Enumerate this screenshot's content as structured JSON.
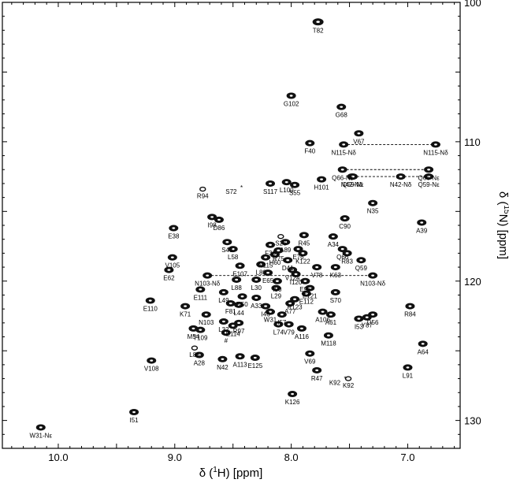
{
  "chart_data": {
    "type": "scatter",
    "xlabel_prefix": "δ (",
    "xlabel_sup": "1",
    "xlabel_suffix": "H) [ppm]",
    "ylabel_prefix": "δ (",
    "ylabel_sup": "15",
    "ylabel_suffix": "N) [ppm]",
    "xlim": [
      10.48,
      6.55
    ],
    "ylim": [
      132.0,
      100.0
    ],
    "x_ticks": [
      10.0,
      9.0,
      8.0,
      7.0
    ],
    "x_tick_labels": [
      "10.0",
      "9.0",
      "8.0",
      "7.0"
    ],
    "y_ticks": [
      100,
      110,
      120,
      130
    ],
    "y_tick_labels": [
      "100",
      "110",
      "120",
      "130"
    ],
    "axis_position": "right",
    "grid": false,
    "peaks": [
      {
        "label": "T82",
        "x": 7.77,
        "y": 101.4,
        "size": "large"
      },
      {
        "label": "G102",
        "x": 8.0,
        "y": 106.7
      },
      {
        "label": "G68",
        "x": 7.57,
        "y": 107.5
      },
      {
        "label": "F40",
        "x": 7.84,
        "y": 110.1
      },
      {
        "label": "V67",
        "x": 7.42,
        "y": 109.4
      },
      {
        "label": "N115-Nδ",
        "x": 7.55,
        "y": 110.2
      },
      {
        "label": "N115-Nδ",
        "x": 6.76,
        "y": 110.2
      },
      {
        "label": "Q66-Nε",
        "x": 7.56,
        "y": 112.0
      },
      {
        "label": "Q66-Nε",
        "x": 6.82,
        "y": 112.0
      },
      {
        "label": "N42-Nδ",
        "x": 7.48,
        "y": 112.5
      },
      {
        "label": "N42-Nδ",
        "x": 7.06,
        "y": 112.5
      },
      {
        "label": "Q59-Nε",
        "x": 7.47,
        "y": 112.5
      },
      {
        "label": "Q59-Nε",
        "x": 6.82,
        "y": 112.5
      },
      {
        "label": "H101",
        "x": 7.74,
        "y": 112.7
      },
      {
        "label": "S55",
        "x": 7.97,
        "y": 113.1
      },
      {
        "label": "L100",
        "x": 8.04,
        "y": 112.9
      },
      {
        "label": "S117",
        "x": 8.18,
        "y": 113.0
      },
      {
        "label": "R94",
        "x": 8.76,
        "y": 113.4,
        "size": "small"
      },
      {
        "label": "N35",
        "x": 7.3,
        "y": 114.4
      },
      {
        "label": "I98",
        "x": 8.68,
        "y": 115.4
      },
      {
        "label": "D86",
        "x": 8.62,
        "y": 115.6
      },
      {
        "label": "C90",
        "x": 7.54,
        "y": 115.5
      },
      {
        "label": "A39",
        "x": 6.88,
        "y": 115.8
      },
      {
        "label": "E38",
        "x": 9.01,
        "y": 116.2
      },
      {
        "label": "R45",
        "x": 7.89,
        "y": 116.7
      },
      {
        "label": "A34",
        "x": 7.64,
        "y": 116.8
      },
      {
        "label": "S43",
        "x": 8.55,
        "y": 117.2
      },
      {
        "label": "A89",
        "x": 8.05,
        "y": 117.2
      },
      {
        "label": "S26",
        "x": 8.09,
        "y": 116.8,
        "size": "small"
      },
      {
        "label": "F36",
        "x": 8.18,
        "y": 117.4
      },
      {
        "label": "E76",
        "x": 7.94,
        "y": 117.7
      },
      {
        "label": "R75",
        "x": 8.11,
        "y": 117.8
      },
      {
        "label": "H60",
        "x": 8.14,
        "y": 118.1
      },
      {
        "label": "K122",
        "x": 7.9,
        "y": 118.0
      },
      {
        "label": "R83",
        "x": 7.52,
        "y": 118.0
      },
      {
        "label": "Q66",
        "x": 7.56,
        "y": 117.7
      },
      {
        "label": "L58",
        "x": 8.5,
        "y": 117.7
      },
      {
        "label": "N115",
        "x": 8.22,
        "y": 118.3
      },
      {
        "label": "D41",
        "x": 8.03,
        "y": 118.5
      },
      {
        "label": "Q59",
        "x": 7.4,
        "y": 118.5
      },
      {
        "label": "V105",
        "x": 9.02,
        "y": 118.3
      },
      {
        "label": "E107",
        "x": 8.44,
        "y": 118.9
      },
      {
        "label": "L80",
        "x": 8.26,
        "y": 118.8
      },
      {
        "label": "V78",
        "x": 7.78,
        "y": 119.0
      },
      {
        "label": "K63",
        "x": 7.62,
        "y": 119.0
      },
      {
        "label": "E62",
        "x": 9.05,
        "y": 119.2
      },
      {
        "label": "E65",
        "x": 8.2,
        "y": 119.4
      },
      {
        "label": "V124",
        "x": 7.99,
        "y": 119.2
      },
      {
        "label": "I120",
        "x": 7.96,
        "y": 119.5
      },
      {
        "label": "N103-Nδ",
        "x": 8.72,
        "y": 119.6
      },
      {
        "label": "N103-Nδ",
        "x": 7.3,
        "y": 119.6
      },
      {
        "label": "L88",
        "x": 8.47,
        "y": 119.9
      },
      {
        "label": "L30",
        "x": 8.3,
        "y": 119.9
      },
      {
        "label": "I90",
        "x": 8.12,
        "y": 120.0
      },
      {
        "label": "E96",
        "x": 7.88,
        "y": 120.0
      },
      {
        "label": "E121",
        "x": 7.84,
        "y": 120.5
      },
      {
        "label": "S70",
        "x": 7.62,
        "y": 120.8
      },
      {
        "label": "E111",
        "x": 8.78,
        "y": 120.6
      },
      {
        "label": "L49",
        "x": 8.58,
        "y": 120.8
      },
      {
        "label": "L29",
        "x": 8.13,
        "y": 120.5
      },
      {
        "label": "E112",
        "x": 7.87,
        "y": 120.9
      },
      {
        "label": "K50",
        "x": 8.42,
        "y": 121.1
      },
      {
        "label": "A33",
        "x": 8.3,
        "y": 121.2
      },
      {
        "label": "R123",
        "x": 7.97,
        "y": 121.3
      },
      {
        "label": "A77",
        "x": 8.01,
        "y": 121.6
      },
      {
        "label": "E110",
        "x": 9.21,
        "y": 121.4
      },
      {
        "label": "F81",
        "x": 8.52,
        "y": 121.6
      },
      {
        "label": "L44",
        "x": 8.45,
        "y": 121.7
      },
      {
        "label": "I46",
        "x": 8.22,
        "y": 121.8
      },
      {
        "label": "R84",
        "x": 6.98,
        "y": 121.8
      },
      {
        "label": "K71",
        "x": 8.91,
        "y": 121.8
      },
      {
        "label": "W31",
        "x": 8.18,
        "y": 122.2
      },
      {
        "label": "I57",
        "x": 8.08,
        "y": 122.4
      },
      {
        "label": "A106",
        "x": 7.73,
        "y": 122.2
      },
      {
        "label": "A61",
        "x": 7.66,
        "y": 122.4
      },
      {
        "label": "D56",
        "x": 7.3,
        "y": 122.4
      },
      {
        "label": "I53",
        "x": 7.42,
        "y": 122.7
      },
      {
        "label": "Y87",
        "x": 7.35,
        "y": 122.6
      },
      {
        "label": "N103",
        "x": 8.73,
        "y": 122.4
      },
      {
        "label": "L32",
        "x": 8.58,
        "y": 122.9
      },
      {
        "label": "R97",
        "x": 8.45,
        "y": 123.0
      },
      {
        "label": "E114",
        "x": 8.5,
        "y": 123.2
      },
      {
        "label": "L74",
        "x": 8.11,
        "y": 123.1
      },
      {
        "label": "V79",
        "x": 8.02,
        "y": 123.1
      },
      {
        "label": "A116",
        "x": 7.91,
        "y": 123.4
      },
      {
        "label": "M54",
        "x": 8.84,
        "y": 123.4
      },
      {
        "label": "T109",
        "x": 8.78,
        "y": 123.5
      },
      {
        "label": "#",
        "x": 8.56,
        "y": 123.7
      },
      {
        "label": "M118",
        "x": 7.68,
        "y": 123.9
      },
      {
        "label": "A64",
        "x": 6.87,
        "y": 124.5
      },
      {
        "label": "L85",
        "x": 8.83,
        "y": 124.8,
        "size": "small"
      },
      {
        "label": "A28",
        "x": 8.79,
        "y": 125.3
      },
      {
        "label": "V108",
        "x": 9.2,
        "y": 125.7
      },
      {
        "label": "N42",
        "x": 8.59,
        "y": 125.6
      },
      {
        "label": "A113",
        "x": 8.44,
        "y": 125.4
      },
      {
        "label": "E125",
        "x": 8.31,
        "y": 125.5
      },
      {
        "label": "V69",
        "x": 7.84,
        "y": 125.2
      },
      {
        "label": "L91",
        "x": 7.0,
        "y": 126.2
      },
      {
        "label": "R47",
        "x": 7.78,
        "y": 126.4
      },
      {
        "label": "K92",
        "x": 7.51,
        "y": 127.0,
        "size": "small"
      },
      {
        "label": "K126",
        "x": 7.99,
        "y": 128.1
      },
      {
        "label": "I51",
        "x": 9.35,
        "y": 129.4
      },
      {
        "label": "W31-Nε",
        "x": 10.15,
        "y": 130.5
      }
    ],
    "pair_lines": [
      {
        "x1": 7.55,
        "x2": 6.76,
        "y": 110.2
      },
      {
        "x1": 7.56,
        "x2": 6.82,
        "y": 112.0
      },
      {
        "x1": 7.47,
        "x2": 6.82,
        "y": 112.5
      },
      {
        "x1": 8.72,
        "x2": 7.3,
        "y": 119.6
      }
    ],
    "asterisk_marks": [
      {
        "label": "S72",
        "x": 8.4,
        "y": 113.3
      },
      {
        "label": "K92",
        "x": 7.51,
        "y": 127.0
      }
    ]
  }
}
